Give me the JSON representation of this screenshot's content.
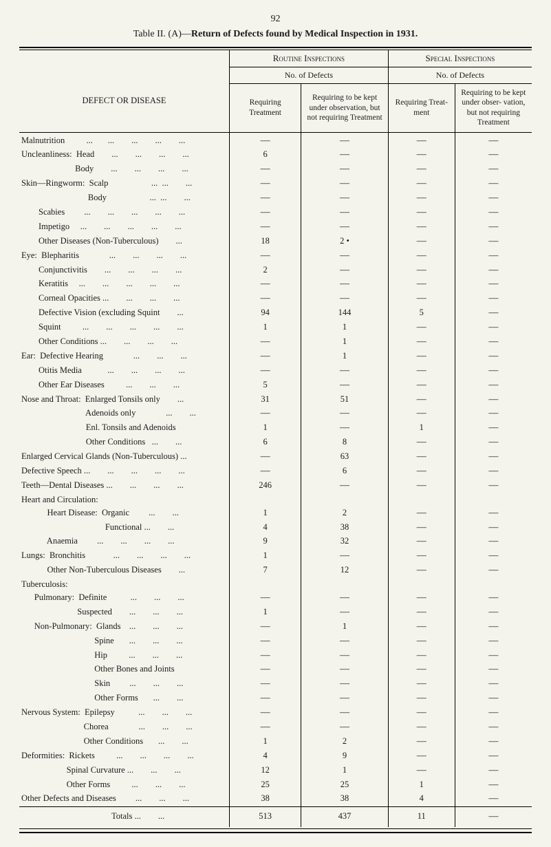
{
  "page_number": "92",
  "title_prefix": "Table II. (A)—",
  "title_bold": "Return of Defects found by Medical Inspection in 1931.",
  "headers": {
    "defect": "DEFECT OR DISEASE",
    "routine": "Routine Inspections",
    "special": "Special Inspections",
    "no_defects": "No. of Defects",
    "col1": "Requiring\nTreatment",
    "col2": "Requiring to be\nkept under\nobservation,\nbut not\nrequiring\nTreatment",
    "col3": "Requiring\nTreat-\nment",
    "col4": "Requiring\nto be kept\nunder obser-\nvation,\nbut not\nrequiring\nTreatment"
  },
  "rows": [
    {
      "label": "Malnutrition          ...       ...        ...        ...        ...",
      "c1": "—",
      "c2": "—",
      "c3": "—",
      "c4": "—"
    },
    {
      "label": "Uncleanliness:  Head        ...        ...        ...        ...",
      "c1": "6",
      "c2": "—",
      "c3": "—",
      "c4": "—"
    },
    {
      "label": "                         Body        ...        ...        ...        ...",
      "c1": "—",
      "c2": "—",
      "c3": "—",
      "c4": "—"
    },
    {
      "label": "Skin—Ringworm:  Scalp                    ...  ...        ...",
      "c1": "—",
      "c2": "—",
      "c3": "—",
      "c4": "—"
    },
    {
      "label": "                               Body                    ...  ...        ...",
      "c1": "—",
      "c2": "—",
      "c3": "—",
      "c4": "—"
    },
    {
      "label": "        Scabies         ...        ...        ...        ...        ...",
      "c1": "—",
      "c2": "—",
      "c3": "—",
      "c4": "—"
    },
    {
      "label": "        Impetigo     ...        ...        ...        ...        ...",
      "c1": "—",
      "c2": "—",
      "c3": "—",
      "c4": "—"
    },
    {
      "label": "        Other Diseases (Non-Tuberculous)        ...",
      "c1": "18",
      "c2": "2    •",
      "c3": "—",
      "c4": "—"
    },
    {
      "label": "Eye:  Blepharitis              ...        ...        ...        ...",
      "c1": "—",
      "c2": "—",
      "c3": "—",
      "c4": "—"
    },
    {
      "label": "        Conjunctivitis        ...        ...        ...        ...",
      "c1": "2",
      "c2": "—",
      "c3": "—",
      "c4": "—"
    },
    {
      "label": "        Keratitis     ...        ...        ...        ...        ...",
      "c1": "—",
      "c2": "—",
      "c3": "—",
      "c4": "—"
    },
    {
      "label": "        Corneal Opacities ...        ...        ...        ...",
      "c1": "—",
      "c2": "—",
      "c3": "—",
      "c4": "—"
    },
    {
      "label": "        Defective Vision (excluding Squint        ...",
      "c1": "94",
      "c2": "144",
      "c3": "5",
      "c4": "—"
    },
    {
      "label": "        Squint          ...        ...        ...        ...        ...",
      "c1": "1",
      "c2": "1",
      "c3": "—",
      "c4": "—"
    },
    {
      "label": "        Other Conditions ...        ...        ...        ...",
      "c1": "—",
      "c2": "1",
      "c3": "—",
      "c4": "—"
    },
    {
      "label": "Ear:  Defective Hearing              ...        ...        ...",
      "c1": "—",
      "c2": "1",
      "c3": "—",
      "c4": "—"
    },
    {
      "label": "        Otitis Media            ...        ...        ...        ...",
      "c1": "—",
      "c2": "—",
      "c3": "—",
      "c4": "—"
    },
    {
      "label": "        Other Ear Diseases          ...        ...        ...",
      "c1": "5",
      "c2": "—",
      "c3": "—",
      "c4": "—"
    },
    {
      "label": "Nose and Throat:  Enlarged Tonsils only        ...",
      "c1": "31",
      "c2": "51",
      "c3": "—",
      "c4": "—"
    },
    {
      "label": "                              Adenoids only              ...        ...",
      "c1": "—",
      "c2": "—",
      "c3": "—",
      "c4": "—"
    },
    {
      "label": "                              Enl. Tonsils and Adenoids",
      "c1": "1",
      "c2": "—",
      "c3": "1",
      "c4": "—"
    },
    {
      "label": "                              Other Conditions   ...        ...",
      "c1": "6",
      "c2": "8",
      "c3": "—",
      "c4": "—"
    },
    {
      "label": "Enlarged Cervical Glands (Non-Tuberculous) ...",
      "c1": "—",
      "c2": "63",
      "c3": "—",
      "c4": "—"
    },
    {
      "label": "Defective Speech ...        ...        ...        ...        ...",
      "c1": "—",
      "c2": "6",
      "c3": "—",
      "c4": "—"
    },
    {
      "label": "Teeth—Dental Diseases ...        ...        ...        ...",
      "c1": "246",
      "c2": "—",
      "c3": "—",
      "c4": "—"
    },
    {
      "label": "Heart and Circulation:",
      "c1": "",
      "c2": "",
      "c3": "",
      "c4": ""
    },
    {
      "label": "            Heart Disease:  Organic         ...        ...",
      "c1": "1",
      "c2": "2",
      "c3": "—",
      "c4": "—"
    },
    {
      "label": "                                       Functional ...        ...",
      "c1": "4",
      "c2": "38",
      "c3": "—",
      "c4": "—"
    },
    {
      "label": "            Anaemia         ...        ...        ...        ...",
      "c1": "9",
      "c2": "32",
      "c3": "—",
      "c4": "—"
    },
    {
      "label": "Lungs:  Bronchitis             ...        ...        ...        ...",
      "c1": "1",
      "c2": "—",
      "c3": "—",
      "c4": "—"
    },
    {
      "label": "            Other Non-Tuberculous Diseases        ...",
      "c1": "7",
      "c2": "12",
      "c3": "—",
      "c4": "—"
    },
    {
      "label": "Tuberculosis:",
      "c1": "",
      "c2": "",
      "c3": "",
      "c4": ""
    },
    {
      "label": "      Pulmonary:  Definite           ...        ...        ...",
      "c1": "—",
      "c2": "—",
      "c3": "—",
      "c4": "—"
    },
    {
      "label": "                          Suspected        ...        ...        ...",
      "c1": "1",
      "c2": "—",
      "c3": "—",
      "c4": "—"
    },
    {
      "label": "      Non-Pulmonary:  Glands    ...        ...        ...",
      "c1": "—",
      "c2": "1",
      "c3": "—",
      "c4": "—"
    },
    {
      "label": "                                  Spine       ...        ...        ...",
      "c1": "—",
      "c2": "—",
      "c3": "—",
      "c4": "—"
    },
    {
      "label": "                                  Hip          ...        ...        ...",
      "c1": "—",
      "c2": "—",
      "c3": "—",
      "c4": "—"
    },
    {
      "label": "                                  Other Bones and Joints",
      "c1": "—",
      "c2": "—",
      "c3": "—",
      "c4": "—"
    },
    {
      "label": "                                  Skin         ...        ...        ...",
      "c1": "—",
      "c2": "—",
      "c3": "—",
      "c4": "—"
    },
    {
      "label": "                                  Other Forms       ...        ...",
      "c1": "—",
      "c2": "—",
      "c3": "—",
      "c4": "—"
    },
    {
      "label": "Nervous System:  Epilepsy           ...        ...        ...",
      "c1": "—",
      "c2": "—",
      "c3": "—",
      "c4": "—"
    },
    {
      "label": "                             Chorea              ...        ...        ...",
      "c1": "—",
      "c2": "—",
      "c3": "—",
      "c4": "—"
    },
    {
      "label": "                             Other Conditions       ...        ...",
      "c1": "1",
      "c2": "2",
      "c3": "—",
      "c4": "—"
    },
    {
      "label": "Deformities:  Rickets          ...        ...        ...        ...",
      "c1": "4",
      "c2": "9",
      "c3": "—",
      "c4": "—"
    },
    {
      "label": "                     Spinal Curvature ...        ...        ...",
      "c1": "12",
      "c2": "1",
      "c3": "—",
      "c4": "—"
    },
    {
      "label": "                     Other Forms          ...        ...        ...",
      "c1": "25",
      "c2": "25",
      "c3": "1",
      "c4": "—"
    },
    {
      "label": "Other Defects and Diseases         ...        ...        ...",
      "c1": "38",
      "c2": "38",
      "c3": "4",
      "c4": "—"
    }
  ],
  "totals": {
    "label": "                                          Totals ...        ...",
    "c1": "513",
    "c2": "437",
    "c3": "11",
    "c4": "—"
  },
  "colors": {
    "bg": "#f4f4ed",
    "text": "#1a1a1a",
    "rule": "#000000"
  }
}
